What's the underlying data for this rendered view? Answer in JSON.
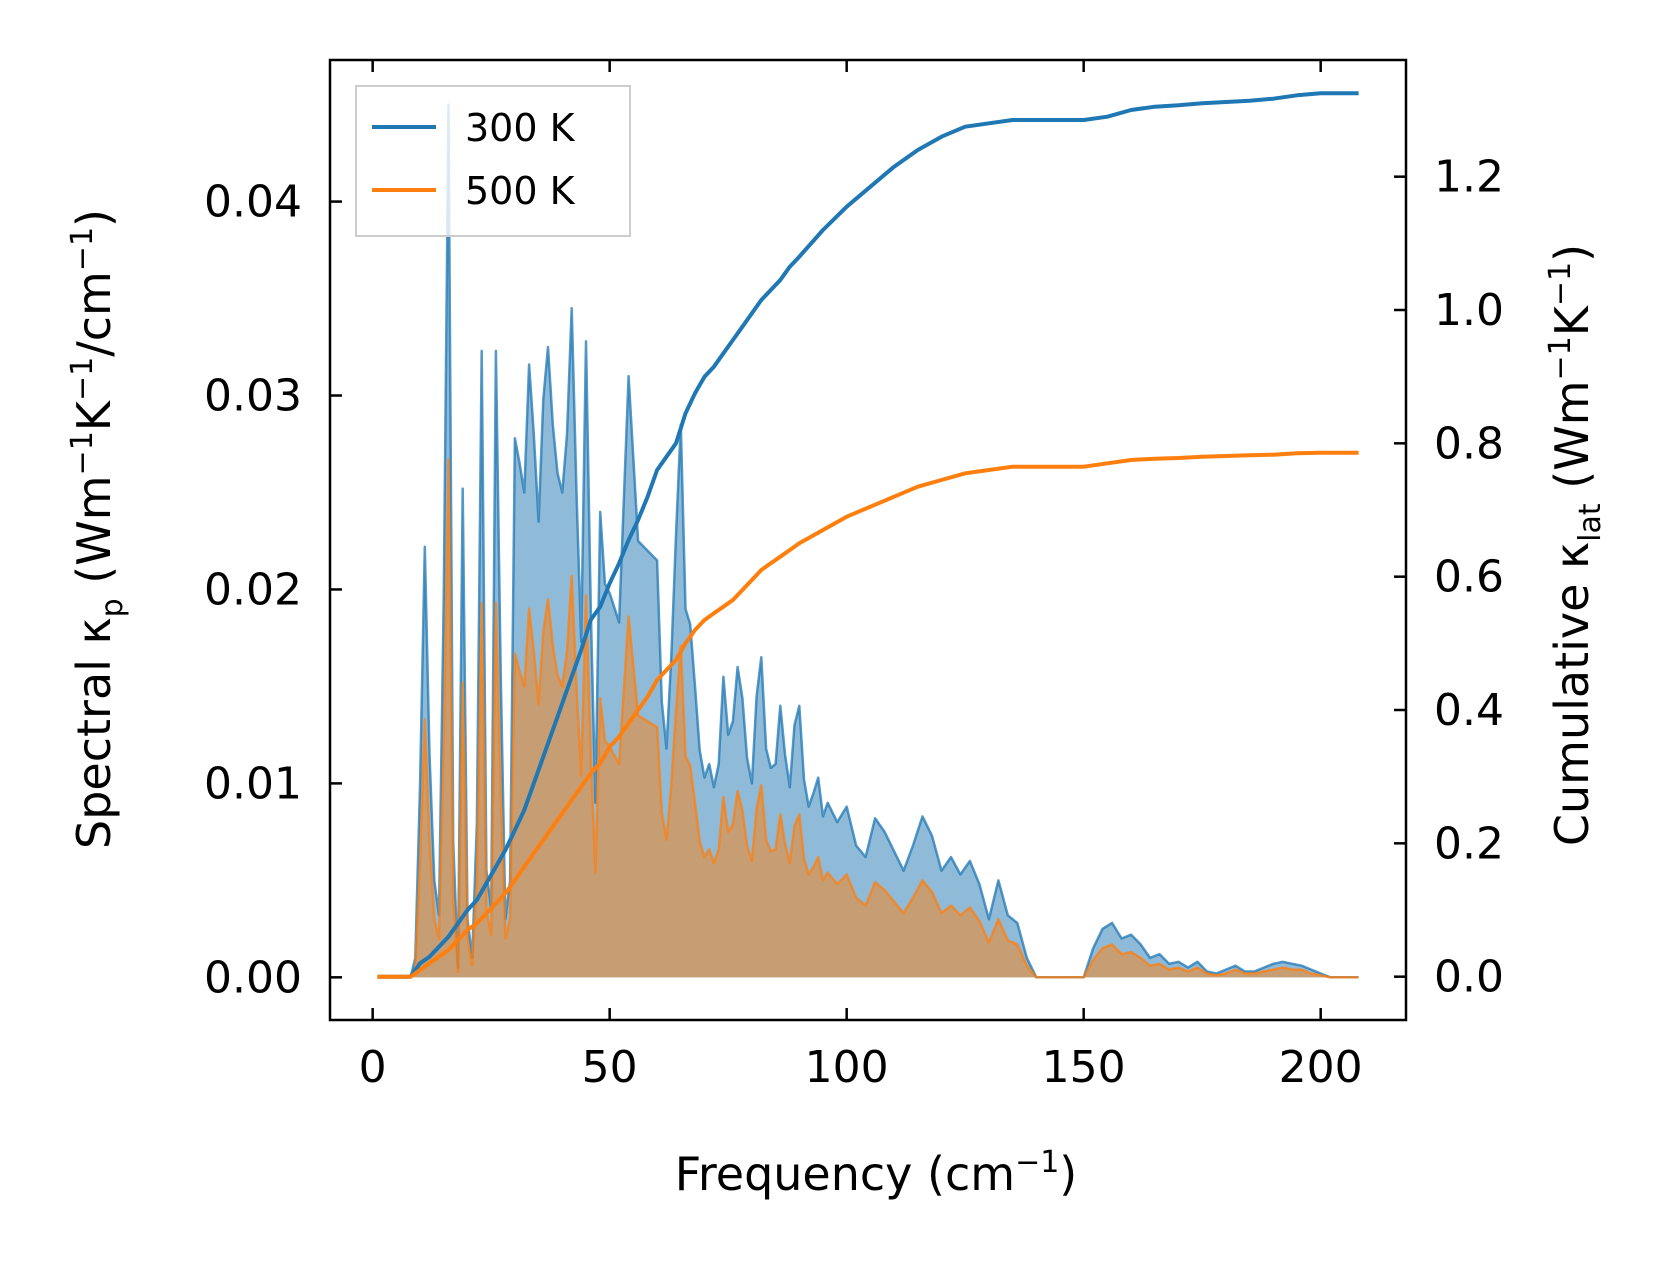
{
  "chart_data": {
    "type": "area+line (dual y-axis)",
    "xlabel": {
      "text": "Frequency (cm",
      "sup": "−1",
      "tail": ")"
    },
    "ylabel_left": {
      "pre": "Spectral κ",
      "sub": "p",
      "mid": " (Wm",
      "sup1": "−1",
      "k": "K",
      "sup2": "−1",
      "slash": "/cm",
      "sup3": "−1",
      "tail": ")"
    },
    "ylabel_right": {
      "pre": "Cumulative κ",
      "sub": "lat",
      "mid": " (Wm",
      "sup1": "−1",
      "k": "K",
      "sup2": "−1",
      "tail": ")"
    },
    "xlim": [
      -9,
      218
    ],
    "ylim_left": [
      -0.0022,
      0.0473
    ],
    "ylim_right": [
      -0.065,
      1.375
    ],
    "xticks": [
      0,
      50,
      100,
      150,
      200
    ],
    "yticks_left": [
      0.0,
      0.01,
      0.02,
      0.03,
      0.04
    ],
    "yticks_right": [
      0.0,
      0.2,
      0.4,
      0.6,
      0.8,
      1.0,
      1.2
    ],
    "legend": {
      "position": "upper-left",
      "entries": [
        "300 K",
        "500 K"
      ]
    },
    "series": [
      {
        "name": "300 K",
        "color": "#1f77b4",
        "fill": "rgba(31,119,180,0.5)",
        "spectral": {
          "x": [
            1,
            8,
            9,
            10,
            11,
            12,
            13,
            14,
            15,
            16,
            17,
            18,
            19,
            20,
            21,
            22,
            23,
            24,
            25,
            26,
            27,
            28,
            29,
            30,
            31,
            32,
            33,
            34,
            35,
            36,
            37,
            38,
            39,
            40,
            41,
            42,
            43,
            44,
            45,
            46,
            47,
            48,
            49,
            50,
            52,
            54,
            56,
            58,
            60,
            61,
            62,
            63,
            64,
            65,
            66,
            67,
            68,
            69,
            70,
            71,
            72,
            73,
            74,
            75,
            76,
            77,
            78,
            79,
            80,
            81,
            82,
            83,
            84,
            85,
            86,
            87,
            88,
            89,
            90,
            91,
            92,
            93,
            94,
            95,
            96,
            98,
            100,
            102,
            104,
            106,
            108,
            110,
            112,
            114,
            116,
            118,
            120,
            122,
            124,
            126,
            128,
            130,
            132,
            134,
            136,
            138,
            140,
            145,
            150,
            152,
            154,
            156,
            158,
            160,
            162,
            164,
            166,
            168,
            170,
            172,
            174,
            176,
            178,
            180,
            182,
            184,
            186,
            188,
            190,
            192,
            194,
            196,
            198,
            200,
            202,
            204,
            206,
            208
          ],
          "y": [
            0.0,
            0.0,
            0.001,
            0.01,
            0.0222,
            0.0115,
            0.005,
            0.0032,
            0.0198,
            0.045,
            0.007,
            0.0005,
            0.0252,
            0.003,
            0.001,
            0.008,
            0.0323,
            0.0055,
            0.0035,
            0.0323,
            0.016,
            0.003,
            0.005,
            0.0278,
            0.0265,
            0.025,
            0.0316,
            0.028,
            0.0235,
            0.0298,
            0.0325,
            0.0285,
            0.026,
            0.025,
            0.028,
            0.0345,
            0.025,
            0.0173,
            0.0328,
            0.0192,
            0.009,
            0.024,
            0.0203,
            0.0198,
            0.0183,
            0.031,
            0.0225,
            0.022,
            0.0215,
            0.0142,
            0.0118,
            0.0165,
            0.0228,
            0.0285,
            0.019,
            0.0182,
            0.015,
            0.0117,
            0.0103,
            0.011,
            0.0098,
            0.011,
            0.0155,
            0.0125,
            0.0132,
            0.016,
            0.0144,
            0.0113,
            0.01,
            0.0145,
            0.0165,
            0.0118,
            0.0108,
            0.011,
            0.014,
            0.0115,
            0.0098,
            0.013,
            0.014,
            0.0102,
            0.0088,
            0.0095,
            0.0103,
            0.0083,
            0.009,
            0.008,
            0.0088,
            0.0068,
            0.0062,
            0.0082,
            0.0075,
            0.0065,
            0.0055,
            0.0068,
            0.0083,
            0.0073,
            0.0055,
            0.0062,
            0.0053,
            0.006,
            0.0048,
            0.003,
            0.005,
            0.0032,
            0.0028,
            0.001,
            0.0,
            0.0,
            0.0,
            0.0015,
            0.0025,
            0.0028,
            0.002,
            0.0022,
            0.0017,
            0.001,
            0.0012,
            0.0007,
            0.0008,
            0.0005,
            0.0008,
            0.0003,
            0.0002,
            0.0004,
            0.0006,
            0.0003,
            0.0003,
            0.0005,
            0.0007,
            0.0008,
            0.0007,
            0.0006,
            0.0004,
            0.0002,
            0.0,
            0.0,
            0.0,
            0.0
          ]
        },
        "cumulative": {
          "x": [
            1,
            8,
            10,
            12,
            14,
            16,
            18,
            20,
            22,
            24,
            26,
            28,
            30,
            32,
            34,
            36,
            38,
            40,
            42,
            44,
            46,
            48,
            50,
            52,
            54,
            56,
            58,
            60,
            62,
            64,
            66,
            68,
            70,
            72,
            74,
            76,
            78,
            80,
            82,
            84,
            86,
            88,
            90,
            95,
            100,
            105,
            110,
            115,
            120,
            125,
            130,
            135,
            140,
            145,
            150,
            155,
            160,
            165,
            170,
            175,
            180,
            185,
            190,
            195,
            200,
            205,
            208
          ],
          "y": [
            0.0,
            0.0,
            0.02,
            0.03,
            0.045,
            0.06,
            0.08,
            0.1,
            0.115,
            0.14,
            0.165,
            0.19,
            0.22,
            0.25,
            0.29,
            0.33,
            0.37,
            0.41,
            0.45,
            0.49,
            0.535,
            0.555,
            0.59,
            0.62,
            0.655,
            0.685,
            0.72,
            0.76,
            0.78,
            0.8,
            0.845,
            0.875,
            0.9,
            0.915,
            0.935,
            0.955,
            0.975,
            0.995,
            1.015,
            1.03,
            1.045,
            1.065,
            1.08,
            1.12,
            1.155,
            1.185,
            1.215,
            1.24,
            1.26,
            1.275,
            1.28,
            1.285,
            1.285,
            1.285,
            1.285,
            1.29,
            1.3,
            1.305,
            1.307,
            1.31,
            1.312,
            1.314,
            1.317,
            1.322,
            1.325,
            1.325,
            1.325
          ]
        }
      },
      {
        "name": "500 K",
        "color": "#ff7f0e",
        "fill": "rgba(255,127,14,0.5)",
        "spectral": {
          "x": [
            1,
            8,
            9,
            10,
            11,
            12,
            13,
            14,
            15,
            16,
            17,
            18,
            19,
            20,
            21,
            22,
            23,
            24,
            25,
            26,
            27,
            28,
            29,
            30,
            31,
            32,
            33,
            34,
            35,
            36,
            37,
            38,
            39,
            40,
            41,
            42,
            43,
            44,
            45,
            46,
            47,
            48,
            49,
            50,
            52,
            54,
            56,
            58,
            60,
            61,
            62,
            63,
            64,
            65,
            66,
            67,
            68,
            69,
            70,
            71,
            72,
            73,
            74,
            75,
            76,
            77,
            78,
            79,
            80,
            81,
            82,
            83,
            84,
            85,
            86,
            87,
            88,
            89,
            90,
            91,
            92,
            93,
            94,
            95,
            96,
            98,
            100,
            102,
            104,
            106,
            108,
            110,
            112,
            114,
            116,
            118,
            120,
            122,
            124,
            126,
            128,
            130,
            132,
            134,
            136,
            138,
            140,
            145,
            150,
            152,
            154,
            156,
            158,
            160,
            162,
            164,
            166,
            168,
            170,
            172,
            174,
            176,
            178,
            180,
            182,
            184,
            186,
            188,
            190,
            192,
            194,
            196,
            198,
            200,
            202,
            204,
            206,
            208
          ],
          "y": [
            0.0,
            0.0,
            0.0005,
            0.006,
            0.0133,
            0.007,
            0.003,
            0.002,
            0.012,
            0.0267,
            0.0042,
            0.0003,
            0.0152,
            0.002,
            0.0006,
            0.005,
            0.0193,
            0.0034,
            0.0022,
            0.0193,
            0.0096,
            0.002,
            0.003,
            0.0167,
            0.0158,
            0.015,
            0.019,
            0.0168,
            0.0141,
            0.0178,
            0.0195,
            0.0171,
            0.0156,
            0.015,
            0.0168,
            0.0207,
            0.015,
            0.0104,
            0.0197,
            0.0115,
            0.0054,
            0.0144,
            0.0122,
            0.0119,
            0.011,
            0.0186,
            0.0135,
            0.0132,
            0.0129,
            0.0085,
            0.0071,
            0.0099,
            0.0137,
            0.0171,
            0.0114,
            0.0109,
            0.009,
            0.007,
            0.0062,
            0.0066,
            0.0059,
            0.0066,
            0.0093,
            0.0075,
            0.0079,
            0.0096,
            0.0086,
            0.0068,
            0.006,
            0.0087,
            0.0099,
            0.0071,
            0.0065,
            0.0066,
            0.0084,
            0.0069,
            0.0059,
            0.0078,
            0.0084,
            0.0061,
            0.0053,
            0.0057,
            0.0062,
            0.005,
            0.0054,
            0.0048,
            0.0053,
            0.0041,
            0.0037,
            0.0049,
            0.0045,
            0.0039,
            0.0033,
            0.0041,
            0.005,
            0.0044,
            0.0033,
            0.0037,
            0.0032,
            0.0036,
            0.0029,
            0.0018,
            0.003,
            0.0019,
            0.0017,
            0.0006,
            0.0,
            0.0,
            0.0,
            0.0009,
            0.0015,
            0.0017,
            0.0012,
            0.0013,
            0.001,
            0.0006,
            0.0007,
            0.0004,
            0.0005,
            0.0003,
            0.0005,
            0.0002,
            0.0001,
            0.0002,
            0.0004,
            0.0002,
            0.0002,
            0.0003,
            0.0004,
            0.0005,
            0.0004,
            0.0004,
            0.0002,
            0.0001,
            0.0,
            0.0,
            0.0,
            0.0
          ]
        },
        "cumulative": {
          "x": [
            1,
            8,
            10,
            12,
            14,
            16,
            18,
            20,
            22,
            24,
            26,
            28,
            30,
            32,
            34,
            36,
            38,
            40,
            42,
            44,
            46,
            48,
            50,
            52,
            54,
            56,
            58,
            60,
            62,
            64,
            66,
            68,
            70,
            72,
            74,
            76,
            78,
            80,
            82,
            84,
            86,
            88,
            90,
            95,
            100,
            105,
            110,
            115,
            120,
            125,
            130,
            135,
            140,
            145,
            150,
            155,
            160,
            165,
            170,
            175,
            180,
            185,
            190,
            195,
            200,
            205,
            208
          ],
          "y": [
            0.0,
            0.0,
            0.01,
            0.02,
            0.03,
            0.04,
            0.055,
            0.07,
            0.08,
            0.095,
            0.11,
            0.125,
            0.145,
            0.165,
            0.185,
            0.205,
            0.225,
            0.245,
            0.265,
            0.285,
            0.305,
            0.32,
            0.345,
            0.36,
            0.38,
            0.4,
            0.42,
            0.445,
            0.46,
            0.475,
            0.5,
            0.52,
            0.535,
            0.545,
            0.555,
            0.565,
            0.58,
            0.595,
            0.61,
            0.62,
            0.63,
            0.64,
            0.65,
            0.67,
            0.69,
            0.705,
            0.72,
            0.735,
            0.745,
            0.755,
            0.76,
            0.765,
            0.765,
            0.765,
            0.765,
            0.77,
            0.775,
            0.777,
            0.778,
            0.78,
            0.781,
            0.782,
            0.783,
            0.785,
            0.786,
            0.786,
            0.786
          ]
        }
      }
    ]
  }
}
